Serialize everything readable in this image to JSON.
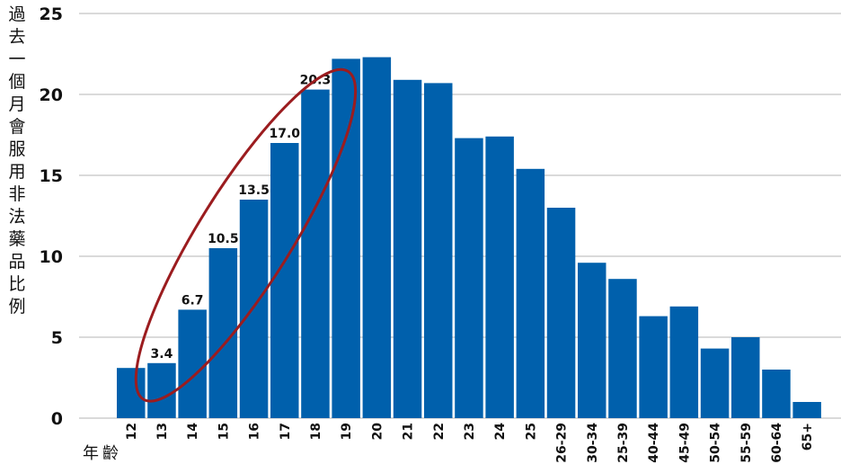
{
  "chart_data": {
    "type": "bar",
    "ylabel": "過去一個月會服用非法藥品比例",
    "xlabel": "年齡",
    "ylim": [
      0,
      25
    ],
    "yticks": [
      "0",
      "5",
      "10",
      "15",
      "20",
      "25"
    ],
    "grid": true,
    "categories": [
      "12",
      "13",
      "14",
      "15",
      "16",
      "17",
      "18",
      "19",
      "20",
      "21",
      "22",
      "23",
      "24",
      "25",
      "26-29",
      "30-34",
      "25-39",
      "40-44",
      "45-49",
      "50-54",
      "55-59",
      "60-64",
      "65+"
    ],
    "values": [
      3.1,
      3.4,
      6.7,
      10.5,
      13.5,
      17.0,
      20.3,
      22.2,
      22.3,
      20.9,
      20.7,
      17.3,
      17.4,
      15.4,
      13.0,
      9.6,
      8.6,
      6.3,
      6.9,
      4.3,
      5.0,
      3.0,
      1.0
    ],
    "data_labels": {
      "1": "3.4",
      "2": "6.7",
      "3": "10.5",
      "4": "13.5",
      "5": "17.0",
      "6": "20.3"
    },
    "bar_color": "#0060ac",
    "highlight_color": "#9b1c1f"
  }
}
